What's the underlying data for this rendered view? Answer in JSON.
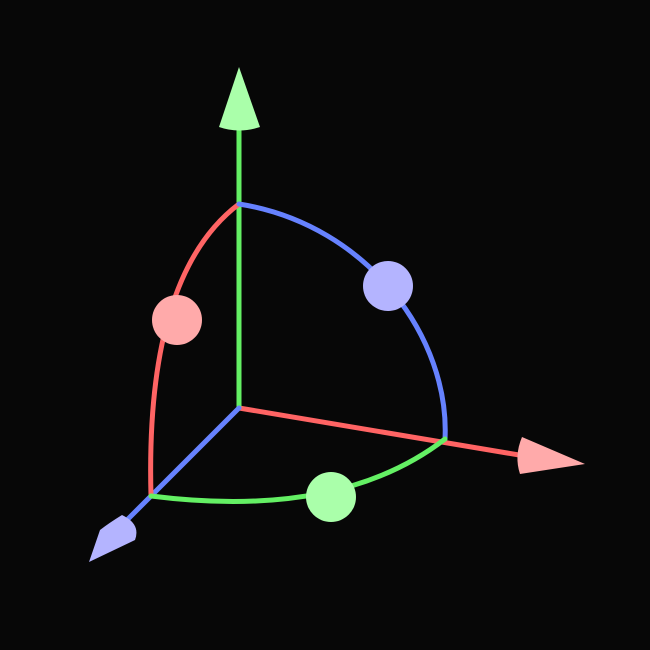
{
  "gizmo": {
    "type": "rotation-gizmo",
    "background": "#070707",
    "colors": {
      "x_line": "#ff6464",
      "x_tip": "#ffaaaa",
      "y_line": "#64f064",
      "y_tip": "#aaffaa",
      "z_line": "#6682ff",
      "z_tip": "#b4b4ff"
    },
    "axes": [
      {
        "name": "x",
        "icon": "cone-arrow"
      },
      {
        "name": "y",
        "icon": "cone-arrow"
      },
      {
        "name": "z",
        "icon": "cone-arrow"
      }
    ],
    "rings": [
      {
        "plane": "yz",
        "handle": "circle"
      },
      {
        "plane": "xy",
        "handle": "circle"
      },
      {
        "plane": "xz",
        "handle": "circle"
      }
    ]
  }
}
